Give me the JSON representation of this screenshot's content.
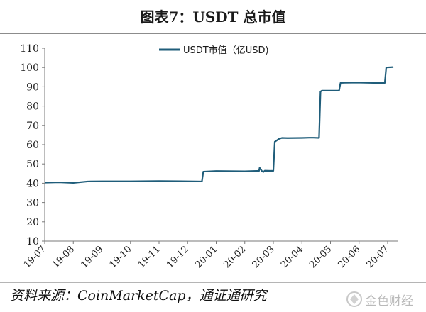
{
  "header": {
    "title": "图表7：USDT 总市值"
  },
  "footer": {
    "source": "资料来源：CoinMarketCap，通证通研究",
    "brand": "金色财经"
  },
  "chart_data": {
    "type": "line",
    "title": "",
    "xlabel": "",
    "ylabel": "",
    "ylim": [
      10,
      110
    ],
    "yticks": [
      10,
      20,
      30,
      40,
      50,
      60,
      70,
      80,
      90,
      100,
      110
    ],
    "xtick_labels": [
      "19-07",
      "19-08",
      "19-09",
      "19-10",
      "19-11",
      "19-12",
      "20-01",
      "20-02",
      "20-03",
      "20-04",
      "20-05",
      "20-06",
      "20-07"
    ],
    "legend_position": "top",
    "grid": false,
    "series": [
      {
        "name": "USDT市值（亿USD)",
        "color": "#1f5d7a",
        "x": [
          0,
          0.5,
          1.0,
          1.5,
          2.0,
          3.0,
          4.0,
          5.0,
          5.5,
          5.55,
          6.0,
          7.0,
          7.5,
          7.52,
          7.6,
          7.65,
          7.7,
          8.0,
          8.05,
          8.1,
          8.2,
          8.3,
          8.5,
          9.0,
          9.25,
          9.4,
          9.6,
          9.65,
          9.7,
          10.0,
          10.3,
          10.35,
          10.5,
          11.0,
          11.5,
          11.9,
          11.95,
          12.2
        ],
        "y": [
          40.3,
          40.5,
          40.2,
          40.9,
          41.0,
          41.0,
          41.1,
          41.0,
          40.9,
          46.0,
          46.3,
          46.2,
          46.4,
          48.0,
          46.3,
          45.8,
          46.5,
          46.4,
          61.5,
          62.0,
          63.0,
          63.5,
          63.4,
          63.5,
          63.6,
          63.6,
          63.5,
          87.5,
          88.0,
          88.0,
          88.0,
          92.0,
          92.1,
          92.2,
          92.0,
          92.0,
          100.0,
          100.2
        ]
      }
    ]
  }
}
